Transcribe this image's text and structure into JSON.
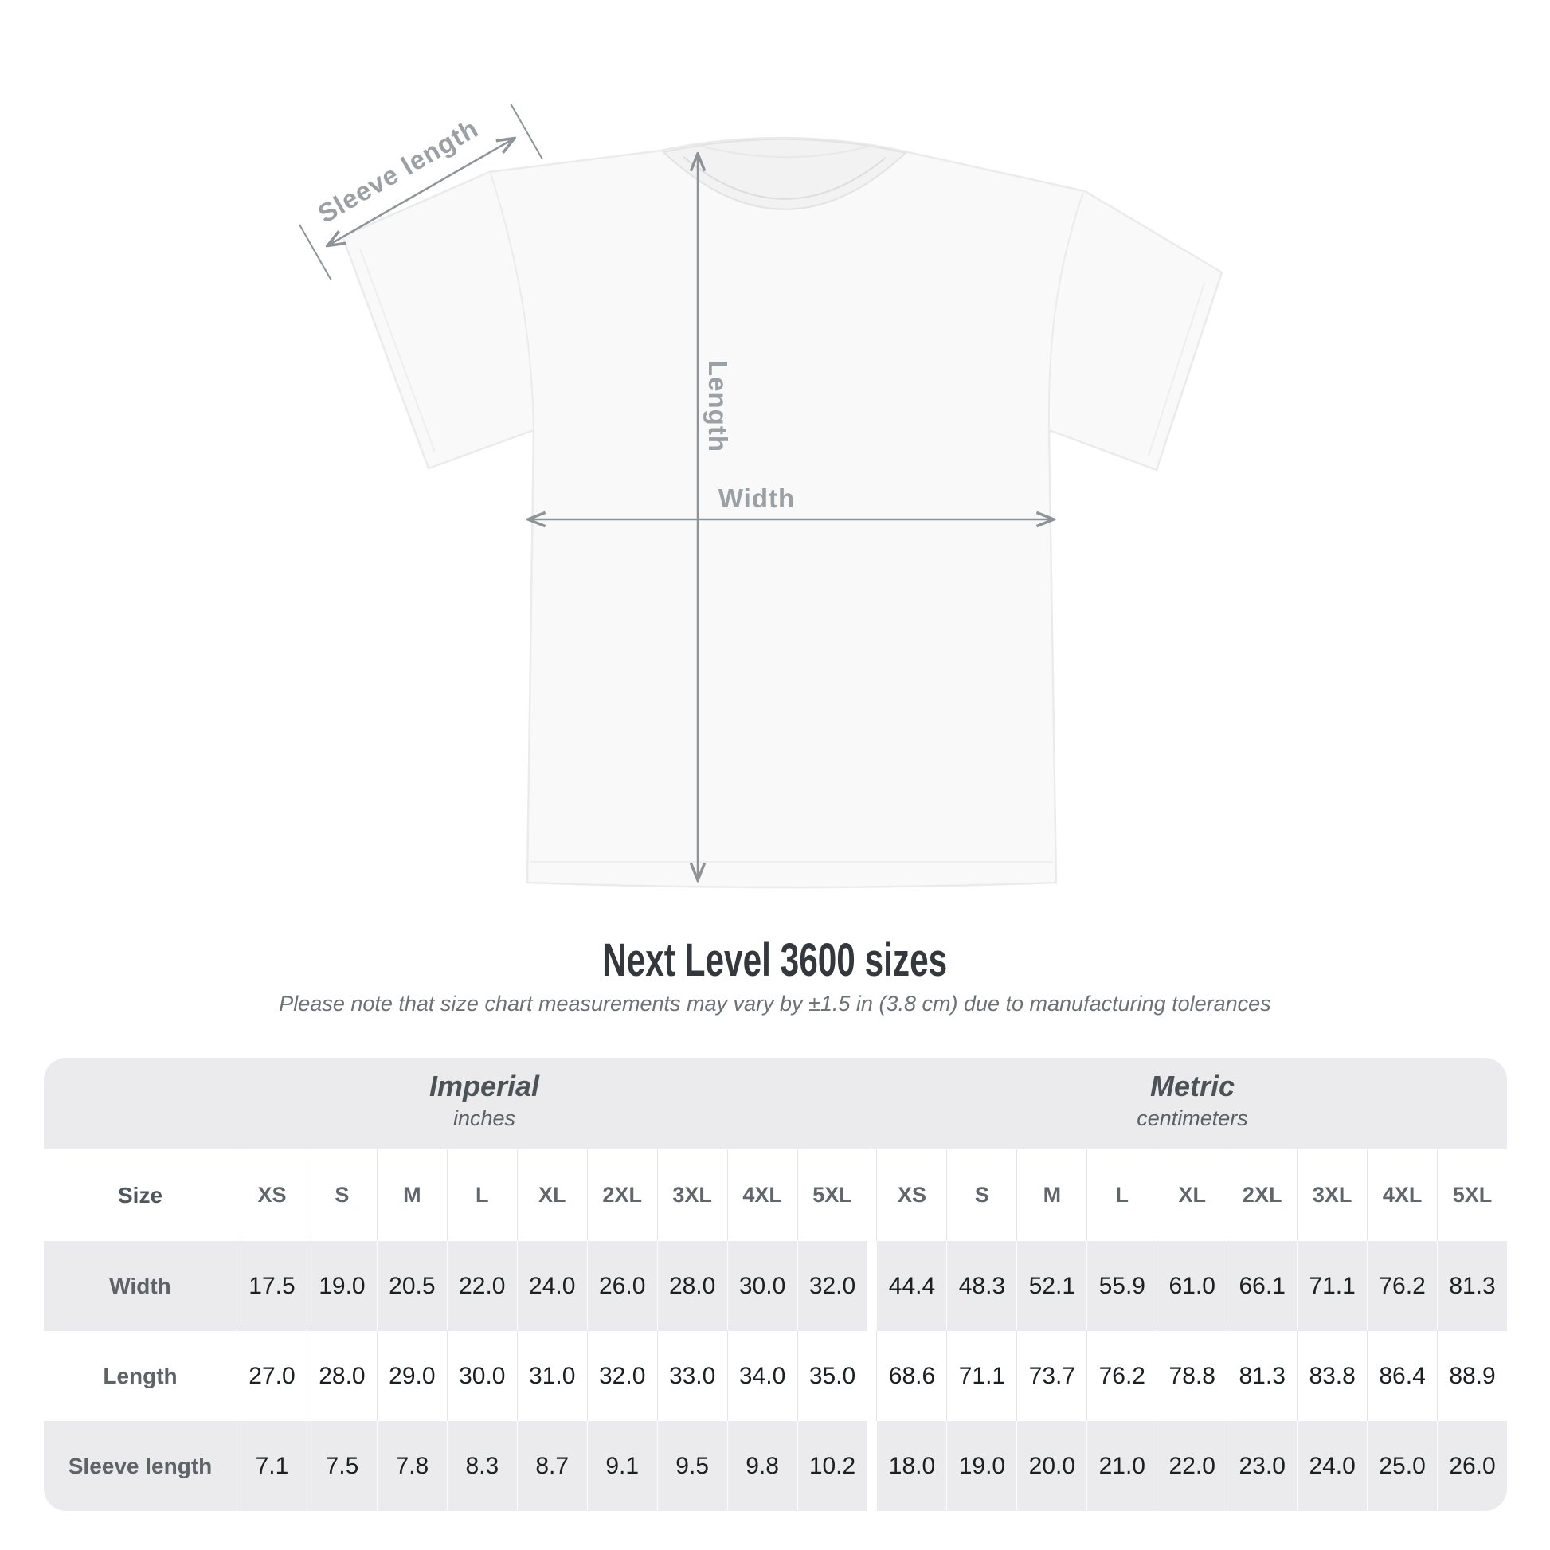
{
  "diagram": {
    "sleeve_length_label": "Sleeve length",
    "length_label": "Length",
    "width_label": "Width"
  },
  "title": "Next Level 3600 sizes",
  "subtitle": "Please note that size chart measurements may vary by ±1.5 in (3.8 cm) due to manufacturing tolerances",
  "table": {
    "size_label": "Size",
    "unit_groups": [
      {
        "name": "Imperial",
        "unit": "inches"
      },
      {
        "name": "Metric",
        "unit": "centimeters"
      }
    ],
    "sizes": [
      "XS",
      "S",
      "M",
      "L",
      "XL",
      "2XL",
      "3XL",
      "4XL",
      "5XL"
    ],
    "rows": [
      {
        "label": "Width",
        "imperial": [
          "17.5",
          "19.0",
          "20.5",
          "22.0",
          "24.0",
          "26.0",
          "28.0",
          "30.0",
          "32.0"
        ],
        "metric": [
          "44.4",
          "48.3",
          "52.1",
          "55.9",
          "61.0",
          "66.1",
          "71.1",
          "76.2",
          "81.3"
        ]
      },
      {
        "label": "Length",
        "imperial": [
          "27.0",
          "28.0",
          "29.0",
          "30.0",
          "31.0",
          "32.0",
          "33.0",
          "34.0",
          "35.0"
        ],
        "metric": [
          "68.6",
          "71.1",
          "73.7",
          "76.2",
          "78.8",
          "81.3",
          "83.8",
          "86.4",
          "88.9"
        ]
      },
      {
        "label": "Sleeve length",
        "imperial": [
          "7.1",
          "7.5",
          "7.8",
          "8.3",
          "8.7",
          "9.1",
          "9.5",
          "9.8",
          "10.2"
        ],
        "metric": [
          "18.0",
          "19.0",
          "20.0",
          "21.0",
          "22.0",
          "23.0",
          "24.0",
          "25.0",
          "26.0"
        ]
      }
    ]
  },
  "colors": {
    "measure_line": "#8d9396",
    "diagram_label": "#9aa0a4",
    "card_bg": "#ebebed",
    "title_text": "#34383c",
    "number_text": "#1d2023",
    "header_text": "#60666b"
  }
}
